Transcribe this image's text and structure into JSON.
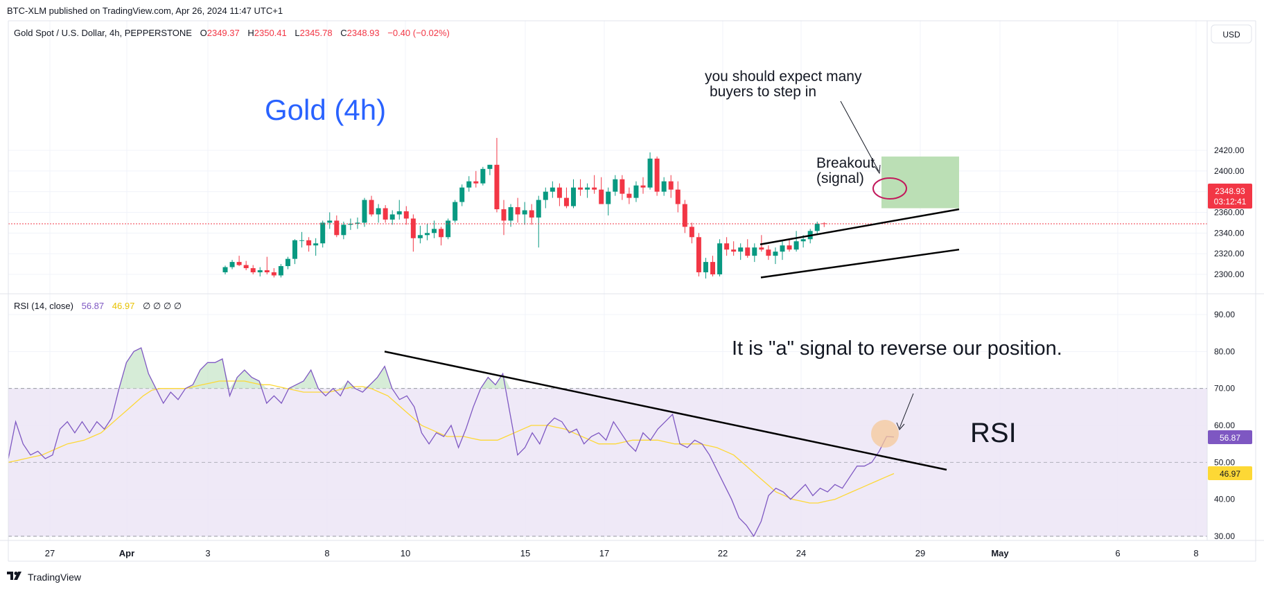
{
  "publisher_line": "BTC-XLM published on TradingView.com, Apr 26, 2024 11:47 UTC+1",
  "brand": {
    "name": "TradingView",
    "icon": "tradingview-logo-icon"
  },
  "currency_button": "USD",
  "legend": {
    "symbol": "Gold Spot / U.S. Dollar, 4h, PEPPERSTONE",
    "o_label": "O",
    "o": "2349.37",
    "h_label": "H",
    "h": "2350.41",
    "l_label": "L",
    "l": "2345.78",
    "c_label": "C",
    "c": "2348.93",
    "change": "−0.40 (−0.02%)"
  },
  "rsi_legend": {
    "label": "RSI (14, close)",
    "rsi": "56.87",
    "ma": "46.97",
    "extras": "∅ ∅ ∅ ∅"
  },
  "annotations": {
    "title": "Gold (4h)",
    "expect_line1": "you should expect many",
    "expect_line2": "buyers to step in",
    "breakout_line1": "Breakout",
    "breakout_line2": "(signal)",
    "reverse": "It is \"a\" signal to reverse our position.",
    "rsi": "RSI"
  },
  "price_badge": {
    "price": "2348.93",
    "countdown": "03:12:41"
  },
  "rsi_badges": {
    "rsi": "56.87",
    "ma": "46.97"
  },
  "colors": {
    "up": "#089981",
    "down": "#f23645",
    "rsi": "#7e57c2",
    "rsi_ma": "#fdd835",
    "band": "#ede7f6",
    "title_blue": "#2962ff",
    "target_box": "#b7ddb1",
    "highlight": "#f5c89a",
    "ring": "#c2185b"
  },
  "chart_data": [
    {
      "type": "candlestick",
      "title": "Gold Spot / U.S. Dollar, 4h, PEPPERSTONE",
      "x_ticks": [
        "27",
        "Apr",
        "3",
        "8",
        "10",
        "15",
        "17",
        "22",
        "24",
        "29",
        "May",
        "6",
        "8"
      ],
      "y_ticks": [
        "2300.00",
        "2320.00",
        "2340.00",
        "2360.00",
        "2380.00",
        "2400.00",
        "2420.00"
      ],
      "ylim": [
        2288,
        2438
      ],
      "current_price": 2348.93,
      "candles_ohlc": [
        [
          2302.0,
          2308.5,
          2300.0,
          2307.0
        ],
        [
          2307.0,
          2314.0,
          2305.0,
          2312.0
        ],
        [
          2312.0,
          2318.0,
          2308.0,
          2309.0
        ],
        [
          2309.0,
          2313.0,
          2304.0,
          2306.0
        ],
        [
          2306.0,
          2309.0,
          2300.0,
          2302.0
        ],
        [
          2302.0,
          2307.0,
          2298.0,
          2304.0
        ],
        [
          2304.0,
          2317.0,
          2300.0,
          2302.0
        ],
        [
          2302.0,
          2306.0,
          2297.0,
          2299.0
        ],
        [
          2299.0,
          2310.0,
          2297.0,
          2308.0
        ],
        [
          2308.0,
          2317.0,
          2305.0,
          2315.0
        ],
        [
          2315.0,
          2334.0,
          2310.0,
          2333.0
        ],
        [
          2333.0,
          2341.0,
          2326.0,
          2333.0
        ],
        [
          2333.0,
          2336.0,
          2322.0,
          2328.0
        ],
        [
          2328.0,
          2335.0,
          2318.0,
          2330.0
        ],
        [
          2330.0,
          2352.0,
          2326.0,
          2350.0
        ],
        [
          2350.0,
          2360.0,
          2344.0,
          2352.0
        ],
        [
          2352.0,
          2357.0,
          2336.0,
          2338.0
        ],
        [
          2338.0,
          2351.0,
          2334.0,
          2348.0
        ],
        [
          2348.0,
          2354.0,
          2343.0,
          2349.0
        ],
        [
          2349.0,
          2355.0,
          2344.0,
          2350.0
        ],
        [
          2350.0,
          2374.0,
          2346.0,
          2372.0
        ],
        [
          2372.0,
          2376.0,
          2356.0,
          2358.0
        ],
        [
          2358.0,
          2368.0,
          2350.0,
          2364.0
        ],
        [
          2364.0,
          2367.0,
          2350.0,
          2353.0
        ],
        [
          2353.0,
          2362.0,
          2348.0,
          2358.0
        ],
        [
          2358.0,
          2372.0,
          2353.0,
          2361.0
        ],
        [
          2361.0,
          2366.0,
          2348.0,
          2354.0
        ],
        [
          2354.0,
          2358.0,
          2322.0,
          2335.0
        ],
        [
          2335.0,
          2347.0,
          2330.0,
          2338.0
        ],
        [
          2338.0,
          2349.0,
          2333.0,
          2340.0
        ],
        [
          2340.0,
          2352.0,
          2335.0,
          2344.0
        ],
        [
          2344.0,
          2346.0,
          2328.0,
          2336.0
        ],
        [
          2336.0,
          2354.0,
          2334.0,
          2352.0
        ],
        [
          2352.0,
          2372.0,
          2350.0,
          2370.0
        ],
        [
          2370.0,
          2387.0,
          2366.0,
          2384.0
        ],
        [
          2384.0,
          2395.0,
          2380.0,
          2390.0
        ],
        [
          2390.0,
          2400.0,
          2384.0,
          2388.0
        ],
        [
          2388.0,
          2404.0,
          2386.0,
          2402.0
        ],
        [
          2402.0,
          2406.0,
          2396.0,
          2406.0
        ],
        [
          2406.0,
          2432.0,
          2360.0,
          2363.0
        ],
        [
          2363.0,
          2372.0,
          2338.0,
          2352.0
        ],
        [
          2352.0,
          2368.0,
          2346.0,
          2365.0
        ],
        [
          2365.0,
          2374.0,
          2350.0,
          2358.0
        ],
        [
          2358.0,
          2370.0,
          2348.0,
          2362.0
        ],
        [
          2362.0,
          2368.0,
          2348.0,
          2355.0
        ],
        [
          2355.0,
          2376.0,
          2326.0,
          2372.0
        ],
        [
          2372.0,
          2384.0,
          2364.0,
          2380.0
        ],
        [
          2380.0,
          2390.0,
          2374.0,
          2384.0
        ],
        [
          2384.0,
          2388.0,
          2366.0,
          2374.0
        ],
        [
          2374.0,
          2384.0,
          2364.0,
          2366.0
        ],
        [
          2366.0,
          2392.0,
          2364.0,
          2384.0
        ],
        [
          2384.0,
          2392.0,
          2376.0,
          2382.0
        ],
        [
          2382.0,
          2388.0,
          2374.0,
          2384.0
        ],
        [
          2384.0,
          2396.0,
          2378.0,
          2382.0
        ],
        [
          2382.0,
          2394.0,
          2374.0,
          2368.0
        ],
        [
          2368.0,
          2384.0,
          2357.0,
          2380.0
        ],
        [
          2380.0,
          2396.0,
          2376.0,
          2392.0
        ],
        [
          2392.0,
          2396.0,
          2372.0,
          2378.0
        ],
        [
          2378.0,
          2384.0,
          2368.0,
          2374.0
        ],
        [
          2374.0,
          2390.0,
          2370.0,
          2386.0
        ],
        [
          2386.0,
          2394.0,
          2378.0,
          2384.0
        ],
        [
          2384.0,
          2418.0,
          2382.0,
          2412.0
        ],
        [
          2412.0,
          2414.0,
          2376.0,
          2380.0
        ],
        [
          2380.0,
          2394.0,
          2376.0,
          2390.0
        ],
        [
          2390.0,
          2396.0,
          2374.0,
          2382.0
        ],
        [
          2382.0,
          2390.0,
          2360.0,
          2368.0
        ],
        [
          2368.0,
          2372.0,
          2340.0,
          2346.0
        ],
        [
          2346.0,
          2350.0,
          2330.0,
          2336.0
        ],
        [
          2336.0,
          2340.0,
          2298.0,
          2302.0
        ],
        [
          2302.0,
          2316.0,
          2296.0,
          2312.0
        ],
        [
          2312.0,
          2318.0,
          2298.0,
          2300.0
        ],
        [
          2300.0,
          2334.0,
          2298.0,
          2330.0
        ],
        [
          2330.0,
          2336.0,
          2318.0,
          2324.0
        ],
        [
          2324.0,
          2332.0,
          2318.0,
          2322.0
        ],
        [
          2322.0,
          2330.0,
          2314.0,
          2326.0
        ],
        [
          2326.0,
          2334.0,
          2316.0,
          2318.0
        ],
        [
          2318.0,
          2330.0,
          2312.0,
          2326.0
        ],
        [
          2326.0,
          2338.0,
          2322.0,
          2324.0
        ],
        [
          2324.0,
          2328.0,
          2314.0,
          2318.0
        ],
        [
          2318.0,
          2326.0,
          2310.0,
          2322.0
        ],
        [
          2322.0,
          2332.0,
          2314.0,
          2328.0
        ],
        [
          2328.0,
          2334.0,
          2322.0,
          2324.0
        ],
        [
          2324.0,
          2342.0,
          2322.0,
          2332.0
        ],
        [
          2332.0,
          2338.0,
          2326.0,
          2334.0
        ],
        [
          2334.0,
          2344.0,
          2330.0,
          2342.0
        ],
        [
          2342.0,
          2351.0,
          2339.0,
          2349.0
        ],
        [
          2349.37,
          2350.41,
          2345.78,
          2348.93
        ]
      ],
      "channel_upper": [
        [
          2329.0,
          2363.0
        ]
      ],
      "channel_lower": [
        [
          2297.0,
          2324.0
        ]
      ],
      "target_zone": {
        "low": 2364.0,
        "high": 2414.0
      }
    },
    {
      "type": "line",
      "title": "RSI (14, close)",
      "y_ticks": [
        "30.00",
        "40.00",
        "50.00",
        "60.00",
        "70.00",
        "80.00",
        "90.00"
      ],
      "ylim": [
        28,
        95
      ],
      "band": [
        30,
        70
      ],
      "midline": 50,
      "series": [
        {
          "name": "RSI",
          "values": [
            51,
            61,
            55,
            52,
            53,
            51,
            52,
            59,
            61,
            58,
            61,
            58,
            61,
            59,
            62,
            70,
            77,
            80,
            81,
            74,
            70,
            66,
            69,
            67,
            70,
            71,
            75,
            77,
            77,
            78,
            68,
            73,
            75,
            73,
            72,
            66,
            68,
            66,
            70,
            71,
            72,
            75,
            70,
            68,
            70,
            68,
            72,
            70,
            69,
            71,
            73,
            76,
            70,
            67,
            68,
            65,
            58,
            55,
            58,
            57,
            60,
            54,
            59,
            65,
            70,
            73,
            71,
            74,
            63,
            52,
            54,
            58,
            55,
            60,
            62,
            61,
            58,
            59,
            55,
            57,
            58,
            56,
            61,
            58,
            55,
            53,
            58,
            56,
            59,
            61,
            63,
            55,
            54,
            56,
            55,
            52,
            48,
            44,
            40,
            35,
            33,
            30,
            34,
            41,
            43,
            42,
            40,
            42,
            44,
            41,
            43,
            42,
            44,
            43,
            46,
            49,
            49,
            50,
            53,
            57,
            56.87
          ]
        },
        {
          "name": "RSI-based MA",
          "values": [
            50,
            50.5,
            51,
            51.5,
            52,
            53,
            54,
            55,
            55.5,
            56,
            57,
            58,
            60,
            62,
            64,
            66,
            68,
            69.5,
            70,
            70,
            70,
            70,
            70.5,
            71,
            71.5,
            72,
            72,
            72,
            72,
            71.5,
            71,
            71,
            70.5,
            70,
            69.5,
            69,
            69,
            69,
            69,
            69.5,
            70,
            70.5,
            70.5,
            70,
            69,
            68,
            66,
            64,
            62,
            60,
            59,
            58,
            57,
            57,
            57,
            56.5,
            56,
            56,
            56,
            57,
            58,
            59,
            60,
            60,
            60,
            59.5,
            59,
            58,
            57,
            56,
            55,
            55,
            55,
            55.5,
            56,
            56,
            56,
            56,
            55.5,
            55,
            55,
            55,
            55,
            54.5,
            54,
            53,
            52,
            50,
            48,
            46,
            44,
            42,
            41,
            40,
            39.5,
            39,
            39,
            39.5,
            40,
            41,
            42,
            43,
            44,
            45,
            46,
            46.97
          ]
        }
      ],
      "trendline": [
        [
          80.0,
          48.0
        ]
      ]
    }
  ]
}
